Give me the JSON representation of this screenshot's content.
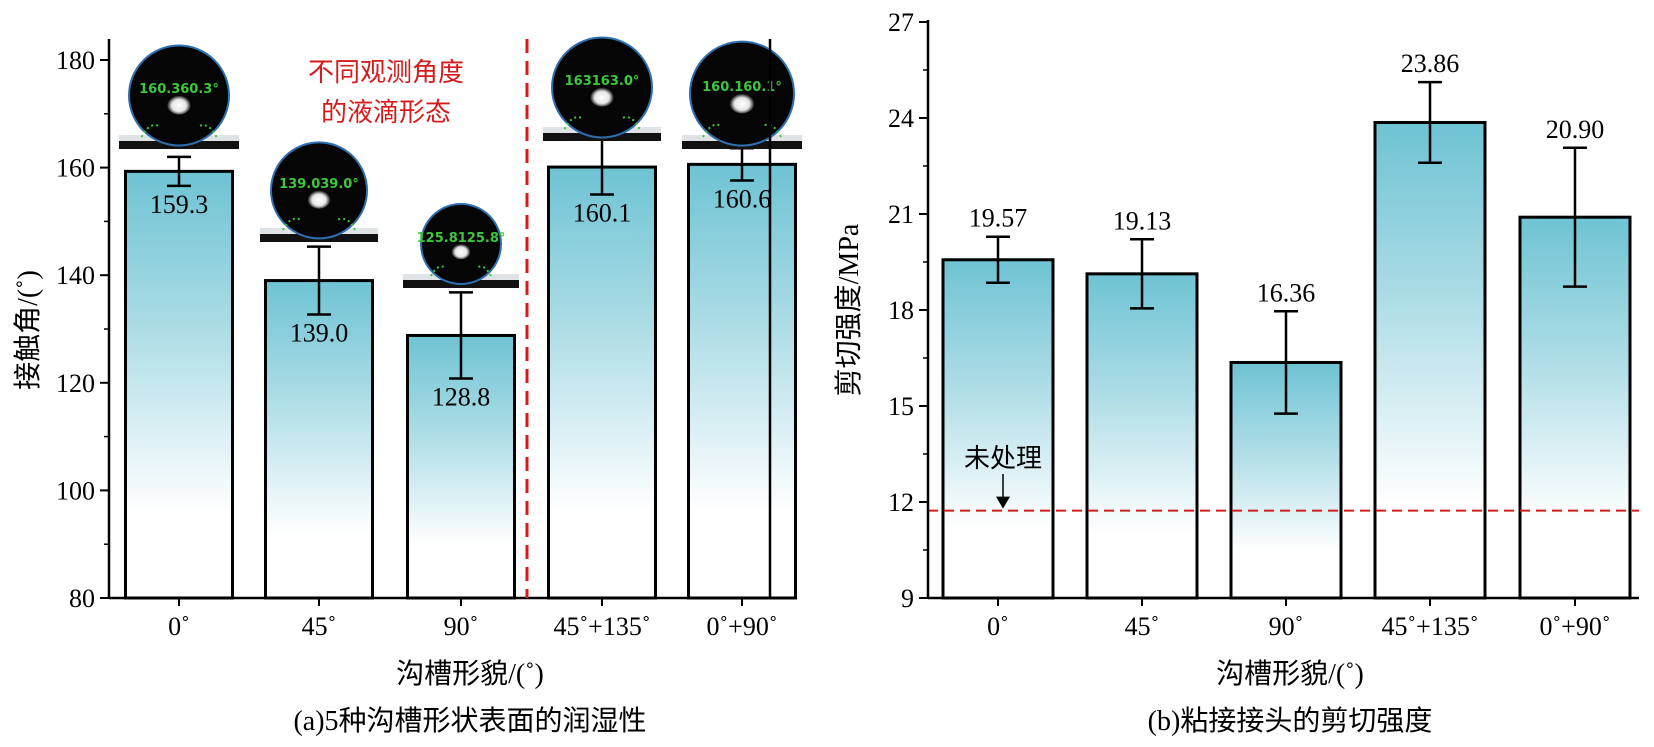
{
  "chart_data": [
    {
      "type": "bar",
      "xlabel": "沟槽形貌/(˚)",
      "ylabel": "接触角/(˚)",
      "caption": "(a)5种沟槽形状表面的润湿性",
      "categories": [
        "0˚",
        "45˚",
        "90˚",
        "45˚+135˚",
        "0˚+90˚"
      ],
      "values": [
        159.3,
        139.0,
        128.8,
        160.1,
        160.6
      ],
      "value_labels": [
        "159.3",
        "139.0",
        "128.8",
        "160.1",
        "160.6"
      ],
      "error": [
        2.7,
        6.3,
        8.0,
        5.1,
        3.0
      ],
      "ylim": [
        80,
        180
      ],
      "yticks": [
        "80",
        "100",
        "120",
        "140",
        "160",
        "180"
      ],
      "annotation": [
        "不同观测角度",
        "的液滴形态"
      ],
      "droplets": [
        {
          "text": "160.360.3°"
        },
        {
          "text": "139.039.0°"
        },
        {
          "text": "125.8125.8°"
        },
        {
          "text": "163163.0°"
        },
        {
          "text": "160.160.1°"
        }
      ],
      "grid": false
    },
    {
      "type": "bar",
      "xlabel": "沟槽形貌/(˚)",
      "ylabel": "剪切强度/MPa",
      "caption": "(b)粘接接头的剪切强度",
      "categories": [
        "0˚",
        "45˚",
        "90˚",
        "45˚+135˚",
        "0˚+90˚"
      ],
      "values": [
        19.57,
        19.13,
        16.36,
        23.86,
        20.9
      ],
      "value_labels": [
        "19.57",
        "19.13",
        "16.36",
        "23.86",
        "20.90"
      ],
      "error": [
        0.72,
        1.08,
        1.6,
        1.26,
        2.17
      ],
      "ylim": [
        9,
        27
      ],
      "yticks": [
        "9",
        "12",
        "15",
        "18",
        "21",
        "24",
        "27"
      ],
      "reference_line": {
        "value": 11.73,
        "label": "未处理"
      },
      "grid": false
    }
  ],
  "colors": {
    "bar_top": "#6ec3d3",
    "bar_bottom": "#ffffff",
    "reference": "#d51c1c",
    "droplet_text": "#3cc83c"
  }
}
